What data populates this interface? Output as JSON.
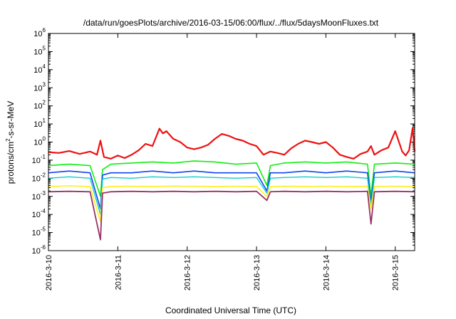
{
  "chart_data": {
    "type": "line",
    "title": "/data/run/goesPlots/archive/2016-03-15/06:00/flux/../flux/5daysMoonFluxes.txt",
    "xlabel": "Coordinated Universal Time (UTC)",
    "ylabel_parts": [
      "protons/cm",
      "2",
      "-s-sr-MeV"
    ],
    "y_scale": "log",
    "ylim": [
      1e-06,
      1000000.0
    ],
    "y_ticks": [
      {
        "base": "10",
        "exp": "-6",
        "value": 1e-06
      },
      {
        "base": "10",
        "exp": "-5",
        "value": 1e-05
      },
      {
        "base": "10",
        "exp": "-4",
        "value": 0.0001
      },
      {
        "base": "10",
        "exp": "-3",
        "value": 0.001
      },
      {
        "base": "10",
        "exp": "-2",
        "value": 0.01
      },
      {
        "base": "10",
        "exp": "-1",
        "value": 0.1
      },
      {
        "base": "10",
        "exp": "0",
        "value": 1
      },
      {
        "base": "10",
        "exp": "1",
        "value": 10
      },
      {
        "base": "10",
        "exp": "2",
        "value": 100
      },
      {
        "base": "10",
        "exp": "3",
        "value": 1000
      },
      {
        "base": "10",
        "exp": "4",
        "value": 10000
      },
      {
        "base": "10",
        "exp": "5",
        "value": 100000
      },
      {
        "base": "10",
        "exp": "6",
        "value": 1000000
      }
    ],
    "x_ticks": [
      "2016-3-10",
      "2016-3-11",
      "2016-3-12",
      "2016-3-13",
      "2016-3-14",
      "2016-3-15"
    ],
    "xlim": [
      0,
      5.28
    ],
    "grid": false,
    "series": [
      {
        "color": "#ee1111",
        "width": 2.2,
        "x": [
          0,
          0.15,
          0.3,
          0.45,
          0.6,
          0.7,
          0.75,
          0.8,
          0.9,
          1.0,
          1.1,
          1.2,
          1.3,
          1.4,
          1.5,
          1.6,
          1.65,
          1.7,
          1.8,
          1.9,
          2.0,
          2.1,
          2.2,
          2.3,
          2.4,
          2.5,
          2.6,
          2.7,
          2.8,
          2.9,
          3.0,
          3.1,
          3.2,
          3.3,
          3.4,
          3.5,
          3.6,
          3.7,
          3.8,
          3.9,
          4.0,
          4.1,
          4.2,
          4.3,
          4.4,
          4.5,
          4.6,
          4.65,
          4.7,
          4.8,
          4.9,
          5.0,
          5.1,
          5.15,
          5.2,
          5.25,
          5.28
        ],
        "values": [
          0.28,
          0.25,
          0.32,
          0.22,
          0.3,
          0.2,
          1.2,
          0.15,
          0.12,
          0.18,
          0.13,
          0.2,
          0.35,
          0.8,
          0.6,
          5.5,
          3.0,
          4.0,
          1.5,
          1.0,
          0.5,
          0.4,
          0.5,
          0.7,
          1.5,
          2.8,
          2.2,
          1.5,
          1.2,
          0.8,
          0.6,
          0.2,
          0.3,
          0.25,
          0.2,
          0.45,
          0.8,
          1.2,
          1.0,
          0.8,
          1.0,
          0.5,
          0.2,
          0.15,
          0.12,
          0.22,
          0.3,
          0.6,
          0.2,
          0.35,
          0.5,
          4.0,
          0.3,
          0.18,
          0.35,
          6.0,
          0.3
        ]
      },
      {
        "color": "#11ee11",
        "width": 1.6,
        "x": [
          0,
          0.3,
          0.6,
          0.75,
          0.78,
          0.9,
          1.2,
          1.5,
          1.8,
          2.1,
          2.4,
          2.7,
          3.0,
          3.15,
          3.2,
          3.4,
          3.7,
          4.0,
          4.3,
          4.6,
          4.65,
          4.7,
          5.0,
          5.28
        ],
        "values": [
          0.05,
          0.06,
          0.05,
          0.001,
          0.03,
          0.06,
          0.07,
          0.08,
          0.07,
          0.09,
          0.08,
          0.06,
          0.07,
          0.004,
          0.05,
          0.07,
          0.08,
          0.07,
          0.08,
          0.06,
          0.001,
          0.06,
          0.07,
          0.06
        ]
      },
      {
        "color": "#1144ee",
        "width": 1.6,
        "x": [
          0,
          0.3,
          0.6,
          0.75,
          0.78,
          0.9,
          1.2,
          1.5,
          1.8,
          2.1,
          2.4,
          2.7,
          3.0,
          3.15,
          3.2,
          3.4,
          3.7,
          4.0,
          4.3,
          4.6,
          4.65,
          4.7,
          5.0,
          5.28
        ],
        "values": [
          0.02,
          0.025,
          0.02,
          0.0002,
          0.015,
          0.02,
          0.02,
          0.025,
          0.02,
          0.025,
          0.02,
          0.02,
          0.02,
          0.002,
          0.02,
          0.02,
          0.025,
          0.02,
          0.025,
          0.02,
          0.0005,
          0.02,
          0.025,
          0.02
        ]
      },
      {
        "color": "#11cccc",
        "width": 1.4,
        "x": [
          0,
          0.3,
          0.6,
          0.75,
          0.78,
          0.9,
          1.2,
          1.5,
          1.8,
          2.1,
          2.4,
          2.7,
          3.0,
          3.15,
          3.2,
          3.4,
          3.7,
          4.0,
          4.3,
          4.6,
          4.65,
          4.7,
          5.0,
          5.28
        ],
        "values": [
          0.01,
          0.012,
          0.01,
          0.0001,
          0.009,
          0.011,
          0.01,
          0.012,
          0.011,
          0.012,
          0.011,
          0.01,
          0.011,
          0.0015,
          0.01,
          0.011,
          0.012,
          0.011,
          0.012,
          0.01,
          0.0003,
          0.011,
          0.012,
          0.011
        ]
      },
      {
        "color": "#ffee22",
        "width": 1.6,
        "x": [
          0,
          0.3,
          0.6,
          0.75,
          0.78,
          0.9,
          1.2,
          1.5,
          1.8,
          2.1,
          2.4,
          2.7,
          3.0,
          3.15,
          3.2,
          3.4,
          3.7,
          4.0,
          4.3,
          4.6,
          4.65,
          4.7,
          5.0,
          5.28
        ],
        "values": [
          0.0035,
          0.0038,
          0.0035,
          4e-05,
          0.003,
          0.0035,
          0.0036,
          0.0035,
          0.0037,
          0.0036,
          0.0035,
          0.0036,
          0.0035,
          0.001,
          0.0035,
          0.0036,
          0.0035,
          0.0036,
          0.0035,
          0.0036,
          0.0002,
          0.0035,
          0.0036,
          0.0035
        ]
      },
      {
        "color": "#993366",
        "width": 1.8,
        "x": [
          0,
          0.3,
          0.6,
          0.75,
          0.78,
          0.9,
          1.2,
          1.5,
          1.8,
          2.1,
          2.4,
          2.7,
          3.0,
          3.15,
          3.2,
          3.4,
          3.7,
          4.0,
          4.3,
          4.6,
          4.65,
          4.7,
          5.0,
          5.28
        ],
        "values": [
          0.0018,
          0.0019,
          0.0018,
          4e-06,
          0.0015,
          0.0018,
          0.0019,
          0.0018,
          0.0019,
          0.0018,
          0.0019,
          0.0018,
          0.0019,
          0.0006,
          0.0018,
          0.0019,
          0.0018,
          0.0019,
          0.0018,
          0.0019,
          3e-05,
          0.0018,
          0.0019,
          0.0018
        ]
      }
    ]
  }
}
